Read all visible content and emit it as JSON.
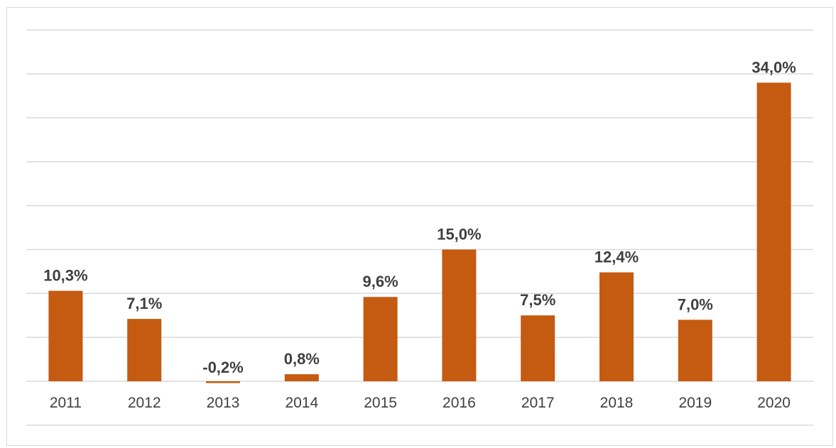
{
  "chart_data": {
    "type": "bar",
    "categories": [
      "2011",
      "2012",
      "2013",
      "2014",
      "2015",
      "2016",
      "2017",
      "2018",
      "2019",
      "2020"
    ],
    "values": [
      10.3,
      7.1,
      -0.2,
      0.8,
      9.6,
      15.0,
      7.5,
      12.4,
      7.0,
      34.0
    ],
    "data_labels": [
      "10,3%",
      "7,1%",
      "-0,2%",
      "0,8%",
      "9,6%",
      "15,0%",
      "7,5%",
      "12,4%",
      "7,0%",
      "34,0%"
    ],
    "title": "",
    "xlabel": "",
    "ylabel": "",
    "ylim": [
      -5,
      40
    ],
    "grid": true,
    "legend": "none",
    "bar_color": "#c55a11"
  }
}
